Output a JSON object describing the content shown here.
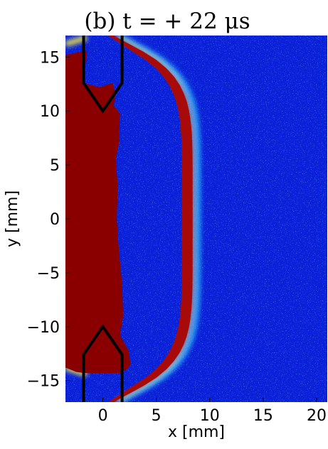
{
  "chart_data": {
    "type": "heatmap",
    "title": "(b) t = + 22 μs",
    "xlabel": "x [mm]",
    "ylabel": "y [mm]",
    "xlim": [
      -3.5,
      21
    ],
    "ylim": [
      -17,
      17
    ],
    "xticks": [
      0,
      5,
      10,
      15,
      20
    ],
    "yticks": [
      -15,
      -10,
      -5,
      0,
      5,
      10,
      15
    ],
    "xtick_labels": [
      "0",
      "5",
      "10",
      "15",
      "20"
    ],
    "ytick_labels": [
      "−15",
      "−10",
      "−5",
      "0",
      "5",
      "10",
      "15"
    ],
    "grid": false,
    "colors": {
      "background": "#0a1fd8",
      "plasma_region": "#8a0000",
      "outer_shell": "#a80a0a",
      "edge_cyan": "#33d8ff",
      "edge_yellow": "#f2ec3c",
      "electrode_outline": "#000000"
    },
    "features": {
      "plasma_front_x_mm": 1.5,
      "outer_shell_x_mm": 8,
      "shell_y_extent_mm": [
        -15.5,
        15.5
      ],
      "electrodes": [
        {
          "name": "upper electrode",
          "tip": [
            0,
            10
          ],
          "half_width_mm": 1.8,
          "y_top_mm": 17
        },
        {
          "name": "lower electrode",
          "tip": [
            0,
            -10
          ],
          "half_width_mm": 1.8,
          "y_bottom_mm": -17
        }
      ]
    }
  }
}
